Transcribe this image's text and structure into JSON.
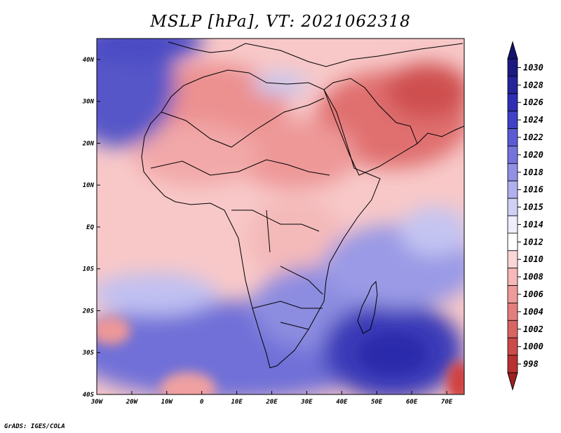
{
  "title": "MSLP [hPa], VT: 2021062318",
  "credit": "GrADS: IGES/COLA",
  "map": {
    "lon_range": [
      -30,
      75
    ],
    "lat_range": [
      -40,
      45
    ],
    "lon_ticks": [
      {
        "value": -30,
        "label": "30W"
      },
      {
        "value": -20,
        "label": "20W"
      },
      {
        "value": -10,
        "label": "10W"
      },
      {
        "value": 0,
        "label": "0"
      },
      {
        "value": 10,
        "label": "10E"
      },
      {
        "value": 20,
        "label": "20E"
      },
      {
        "value": 30,
        "label": "30E"
      },
      {
        "value": 40,
        "label": "40E"
      },
      {
        "value": 50,
        "label": "50E"
      },
      {
        "value": 60,
        "label": "60E"
      },
      {
        "value": 70,
        "label": "70E"
      }
    ],
    "lat_ticks": [
      {
        "value": 40,
        "label": "40N"
      },
      {
        "value": 30,
        "label": "30N"
      },
      {
        "value": 20,
        "label": "20N"
      },
      {
        "value": 10,
        "label": "10N"
      },
      {
        "value": 0,
        "label": "EQ"
      },
      {
        "value": -10,
        "label": "10S"
      },
      {
        "value": -20,
        "label": "20S"
      },
      {
        "value": -30,
        "label": "30S"
      },
      {
        "value": -40,
        "label": "40S"
      }
    ]
  },
  "colorbar": {
    "levels": [
      {
        "label": "1030",
        "color": "#1a1a80"
      },
      {
        "label": "1028",
        "color": "#23239a"
      },
      {
        "label": "1026",
        "color": "#2e2eb4"
      },
      {
        "label": "1024",
        "color": "#4040c8"
      },
      {
        "label": "1022",
        "color": "#5a5ad4"
      },
      {
        "label": "1020",
        "color": "#7474dc"
      },
      {
        "label": "1018",
        "color": "#9090e4"
      },
      {
        "label": "1016",
        "color": "#b0b0ee"
      },
      {
        "label": "1015",
        "color": "#d0d0f6"
      },
      {
        "label": "1014",
        "color": "#eeeefc"
      },
      {
        "label": "1012",
        "color": "#ffffff"
      },
      {
        "label": "1010",
        "color": "#fbd6d6"
      },
      {
        "label": "1008",
        "color": "#f6b8b8"
      },
      {
        "label": "1006",
        "color": "#ee9a9a"
      },
      {
        "label": "1004",
        "color": "#e47e7e"
      },
      {
        "label": "1002",
        "color": "#d86464"
      },
      {
        "label": "1000",
        "color": "#cc4a4a"
      },
      {
        "label": "998",
        "color": "#b83232"
      }
    ],
    "top_arrow_color": "#141470",
    "bottom_arrow_color": "#a02020"
  }
}
